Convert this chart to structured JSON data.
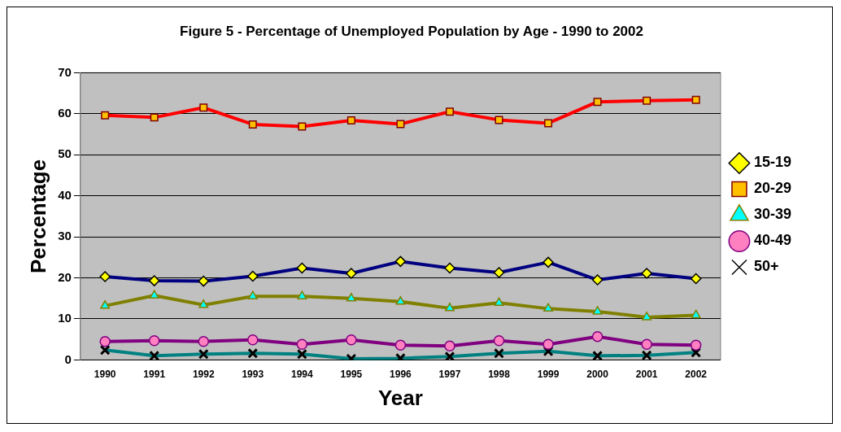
{
  "chart_data": {
    "type": "line",
    "title": "Figure 5 - Percentage of Unemployed Population by Age - 1990 to 2002",
    "xlabel": "Year",
    "ylabel": "Percentage",
    "categories": [
      "1990",
      "1991",
      "1992",
      "1993",
      "1994",
      "1995",
      "1996",
      "1997",
      "1998",
      "1999",
      "2000",
      "2001",
      "2002"
    ],
    "ylim": [
      0,
      70
    ],
    "yticks": [
      0,
      10,
      20,
      30,
      40,
      50,
      60,
      70
    ],
    "grid": "y",
    "legend": "right",
    "series": [
      {
        "name": "15-19",
        "color": "#000080",
        "marker": "diamond",
        "values": [
          20.3,
          19.3,
          19.2,
          20.4,
          22.4,
          21.1,
          24.0,
          22.4,
          21.3,
          23.8,
          19.5,
          21.1,
          19.8
        ]
      },
      {
        "name": "20-29",
        "color": "#ff0000",
        "marker": "square",
        "values": [
          59.6,
          59.1,
          61.5,
          57.4,
          56.9,
          58.4,
          57.5,
          60.5,
          58.5,
          57.7,
          62.9,
          63.2,
          63.4
        ]
      },
      {
        "name": "30-39",
        "color": "#808000",
        "marker": "triangle",
        "values": [
          13.2,
          15.7,
          13.4,
          15.5,
          15.5,
          15.0,
          14.2,
          12.6,
          13.9,
          12.5,
          11.8,
          10.4,
          10.9
        ]
      },
      {
        "name": "40-49",
        "color": "#800080",
        "marker": "circle",
        "values": [
          4.5,
          4.7,
          4.5,
          4.9,
          3.8,
          4.9,
          3.6,
          3.4,
          4.7,
          3.8,
          5.7,
          3.8,
          3.6
        ]
      },
      {
        "name": "50+",
        "color": "#008080",
        "marker": "cross",
        "values": [
          2.4,
          1.0,
          1.4,
          1.6,
          1.4,
          0.3,
          0.4,
          0.8,
          1.6,
          2.1,
          1.0,
          1.1,
          1.8
        ]
      }
    ]
  }
}
